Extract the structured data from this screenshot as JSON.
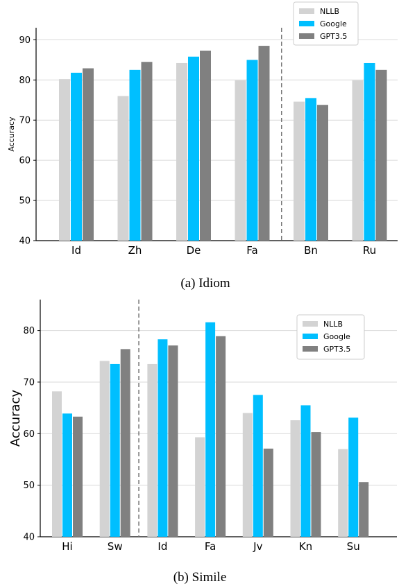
{
  "figure": {
    "caption_a": "(a) Idiom",
    "caption_b": "(b) Simile"
  },
  "colors": {
    "NLLB": "#d3d3d3",
    "Google": "#00bfff",
    "GPT3.5": "#808080"
  },
  "chart_data": [
    {
      "type": "bar",
      "caption": "(a) Idiom",
      "ylabel": "Accuracy",
      "ylim": [
        40,
        93
      ],
      "yticks": [
        40,
        50,
        60,
        70,
        80,
        90
      ],
      "grid": true,
      "legend": "top-right",
      "categories": [
        "Id",
        "Zh",
        "De",
        "Fa",
        "Bn",
        "Ru"
      ],
      "separator_after_index": 3,
      "series": [
        {
          "name": "NLLB",
          "values": [
            80.2,
            76.0,
            84.2,
            79.9,
            74.6,
            79.9
          ]
        },
        {
          "name": "Google",
          "values": [
            81.8,
            82.5,
            85.8,
            85.0,
            75.5,
            84.2
          ]
        },
        {
          "name": "GPT3.5",
          "values": [
            82.9,
            84.5,
            87.3,
            88.5,
            73.8,
            82.5
          ]
        }
      ]
    },
    {
      "type": "bar",
      "caption": "(b) Simile",
      "ylabel": "Accuracy",
      "ylim": [
        40,
        86
      ],
      "yticks": [
        40,
        50,
        60,
        70,
        80
      ],
      "grid": true,
      "legend": "top-right",
      "categories": [
        "Hi",
        "Sw",
        "Id",
        "Fa",
        "Jv",
        "Kn",
        "Su"
      ],
      "separator_after_index": 1,
      "series": [
        {
          "name": "NLLB",
          "values": [
            68.2,
            74.1,
            73.5,
            59.3,
            64.0,
            62.6,
            57.0
          ]
        },
        {
          "name": "Google",
          "values": [
            63.9,
            73.5,
            78.3,
            81.6,
            67.5,
            65.5,
            63.1
          ]
        },
        {
          "name": "GPT3.5",
          "values": [
            63.3,
            76.4,
            77.1,
            78.9,
            57.1,
            60.3,
            50.6
          ]
        }
      ]
    }
  ]
}
